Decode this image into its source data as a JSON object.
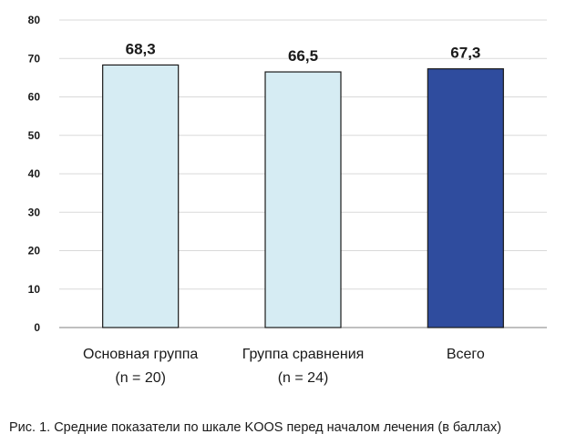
{
  "chart_data": {
    "type": "bar",
    "categories": [
      [
        "Основная группа",
        "(n = 20)"
      ],
      [
        "Группа сравнения",
        "(n = 24)"
      ],
      [
        "Всего"
      ]
    ],
    "values": [
      68.3,
      66.5,
      67.3
    ],
    "value_labels": [
      "68,3",
      "66,5",
      "67,3"
    ],
    "bar_colors": [
      "#d6ecf3",
      "#d6ecf3",
      "#2f4c9e"
    ],
    "bar_stroke": "#1a1a1a",
    "ylim": [
      0,
      80
    ],
    "yticks": [
      0,
      10,
      20,
      30,
      40,
      50,
      60,
      70,
      80
    ],
    "grid": true,
    "grid_color": "#d9d9d9",
    "title": "",
    "xlabel": "",
    "ylabel": ""
  },
  "caption": "Рис. 1. Средние показатели по шкале KOOS перед началом лечения (в баллах)"
}
